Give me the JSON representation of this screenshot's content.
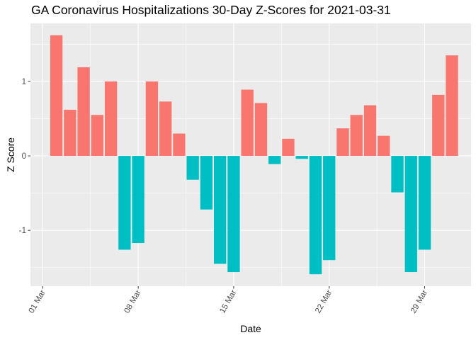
{
  "chart_data": {
    "type": "bar",
    "title": "GA Coronavirus Hospitalizations 30-Day Z-Scores for 2021-03-31",
    "xlabel": "Date",
    "ylabel": "Z Score",
    "x_dates": [
      "02 Mar",
      "03 Mar",
      "04 Mar",
      "05 Mar",
      "06 Mar",
      "07 Mar",
      "08 Mar",
      "09 Mar",
      "10 Mar",
      "11 Mar",
      "12 Mar",
      "13 Mar",
      "14 Mar",
      "15 Mar",
      "16 Mar",
      "17 Mar",
      "18 Mar",
      "19 Mar",
      "20 Mar",
      "21 Mar",
      "22 Mar",
      "23 Mar",
      "24 Mar",
      "25 Mar",
      "26 Mar",
      "27 Mar",
      "28 Mar",
      "29 Mar",
      "30 Mar",
      "31 Mar"
    ],
    "x_day_index": [
      1,
      2,
      3,
      4,
      5,
      6,
      7,
      8,
      9,
      10,
      11,
      12,
      13,
      14,
      15,
      16,
      17,
      18,
      19,
      20,
      21,
      22,
      23,
      24,
      25,
      26,
      27,
      28,
      29,
      30
    ],
    "values": [
      1.62,
      0.62,
      1.19,
      0.55,
      1.0,
      -1.26,
      -1.17,
      1.0,
      0.73,
      0.3,
      -0.32,
      -0.72,
      -1.45,
      -1.56,
      0.89,
      0.71,
      -0.11,
      0.23,
      -0.04,
      -1.59,
      -1.4,
      0.37,
      0.55,
      0.68,
      0.27,
      -0.49,
      -1.56,
      -1.26,
      0.82,
      1.35
    ],
    "xticks": [
      {
        "label": "01 Mar",
        "day": 0
      },
      {
        "label": "08 Mar",
        "day": 7
      },
      {
        "label": "15 Mar",
        "day": 14
      },
      {
        "label": "22 Mar",
        "day": 21
      },
      {
        "label": "29 Mar",
        "day": 28
      }
    ],
    "yticks": [
      -1,
      0,
      1
    ],
    "ytick_labels": [
      "-1",
      "0",
      "1"
    ],
    "xlim": [
      -0.9,
      31.4
    ],
    "ylim": [
      -1.75,
      1.78
    ],
    "colors": {
      "positive": "#F8766D",
      "negative": "#00BFC4",
      "panel": "#EBEBEB",
      "grid": "#FFFFFF",
      "tick": "#333333"
    },
    "legend": "none"
  }
}
